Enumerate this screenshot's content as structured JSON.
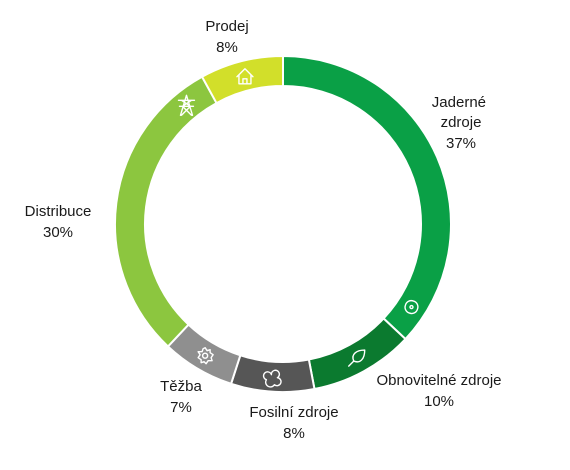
{
  "chart_data": {
    "type": "pie",
    "title": "",
    "categories": [
      "Jaderné zdroje",
      "Obnovitelné zdroje",
      "Fosilní zdroje",
      "Těžba",
      "Distribuce",
      "Prodej"
    ],
    "values": [
      37,
      10,
      8,
      7,
      30,
      8
    ],
    "value_labels": [
      "37%",
      "10%",
      "8%",
      "7%",
      "30%",
      "8%"
    ],
    "colors": [
      "#0aa046",
      "#0b7a2f",
      "#565656",
      "#8f8f8f",
      "#8cc63f",
      "#d2df2a"
    ],
    "icons": [
      "atom-icon",
      "leaf-icon",
      "coal-icon",
      "gear-icon",
      "pylon-icon",
      "house-icon"
    ],
    "start": "top",
    "direction": "clockwise",
    "legend": "none"
  }
}
